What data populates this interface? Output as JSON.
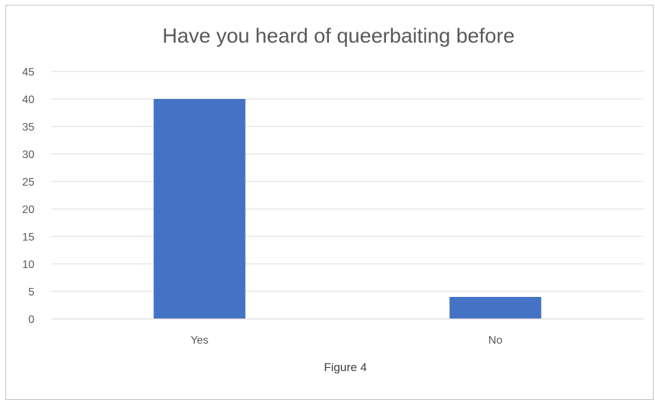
{
  "chart_data": {
    "type": "bar",
    "title": "Have you heard of queerbaiting before",
    "categories": [
      "Yes",
      "No"
    ],
    "values": [
      40,
      4
    ],
    "ylim": [
      0,
      45
    ],
    "yticks": [
      0,
      5,
      10,
      15,
      20,
      25,
      30,
      35,
      40,
      45
    ],
    "xlabel": "",
    "ylabel": "",
    "grid": true,
    "legend": "none",
    "caption": "Figure 4",
    "bar_color": "#4472c4"
  }
}
